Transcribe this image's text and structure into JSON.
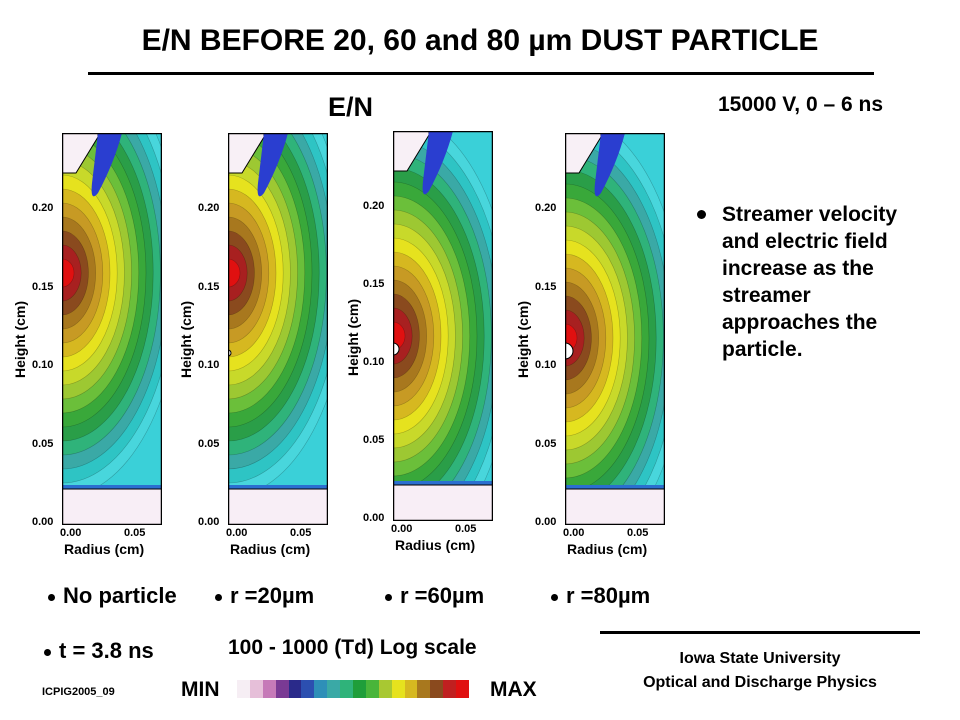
{
  "title": "E/N BEFORE 20, 60 and 80 µm DUST PARTICLE",
  "subtitle_left": "E/N",
  "subtitle_right": "15000 V,  0 – 6 ns",
  "panels": [
    {
      "caption": "No particle",
      "ylabel": "Height (cm)",
      "xlabel": "Radius (cm)",
      "yticks": [
        "0.00",
        "0.05",
        "0.10",
        "0.15",
        "0.20"
      ],
      "xticks": [
        "0.00",
        "0.05"
      ],
      "particle": false
    },
    {
      "caption": "r =20µm",
      "ylabel": "Height (cm)",
      "xlabel": "Radius (cm)",
      "yticks": [
        "0.00",
        "0.05",
        "0.10",
        "0.15",
        "0.20"
      ],
      "xticks": [
        "0.00",
        "0.05"
      ],
      "particle": true
    },
    {
      "caption": "r =60µm",
      "ylabel": "Height (cm)",
      "xlabel": "Radius (cm)",
      "yticks": [
        "0.00",
        "0.05",
        "0.10",
        "0.15",
        "0.20"
      ],
      "xticks": [
        "0.00",
        "0.05"
      ],
      "particle": true
    },
    {
      "caption": "r =80µm",
      "ylabel": "Height (cm)",
      "xlabel": "Radius (cm)",
      "yticks": [
        "0.00",
        "0.05",
        "0.10",
        "0.15",
        "0.20"
      ],
      "xticks": [
        "0.00",
        "0.05"
      ],
      "particle": true
    }
  ],
  "bullet_points": [
    "Streamer velocity and electric field increase as the streamer approaches the particle."
  ],
  "time_label": "t = 3.8 ns",
  "scale_label": "100 - 1000 (Td) Log scale",
  "legend": {
    "min": "MIN",
    "max": "MAX",
    "colors": [
      "#f6eef4",
      "#e6bfd9",
      "#c67ab8",
      "#7a3a94",
      "#2a2a8a",
      "#2c4fb0",
      "#2e8fb8",
      "#3aa9a6",
      "#2fb37a",
      "#1f9e3a",
      "#49b53a",
      "#a8c832",
      "#e6e21e",
      "#d6b820",
      "#a8781e",
      "#8a4a1e",
      "#c02020",
      "#e01010"
    ]
  },
  "institution": {
    "line1": "Iowa State University",
    "line2": "Optical and Discharge Physics"
  },
  "footer_code": "ICPIG2005_09"
}
